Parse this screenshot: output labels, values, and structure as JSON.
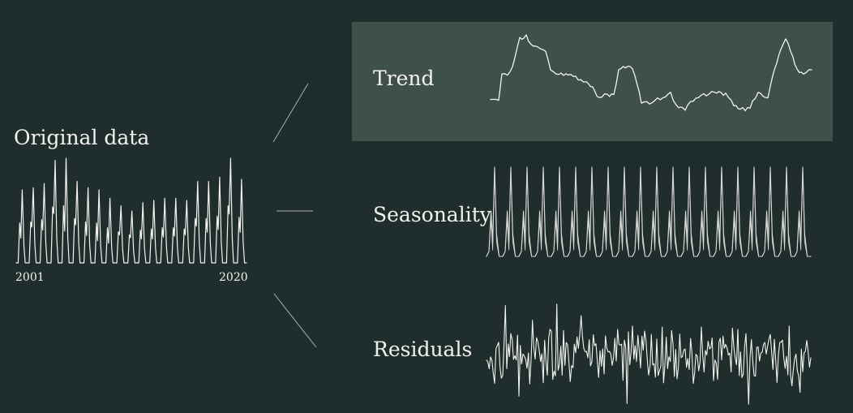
{
  "labels": {
    "original": "Original data",
    "trend": "Trend",
    "seasonality": "Seasonality",
    "residuals": "Residuals"
  },
  "axis": {
    "start_year": "2001",
    "end_year": "2020"
  },
  "colors": {
    "background": "#1f2d2d",
    "trend_highlight": "#3f5049",
    "line": "#f2f2ee",
    "seasonality_line": "#d6d6d2",
    "connector": "#a9b1ae"
  }
}
